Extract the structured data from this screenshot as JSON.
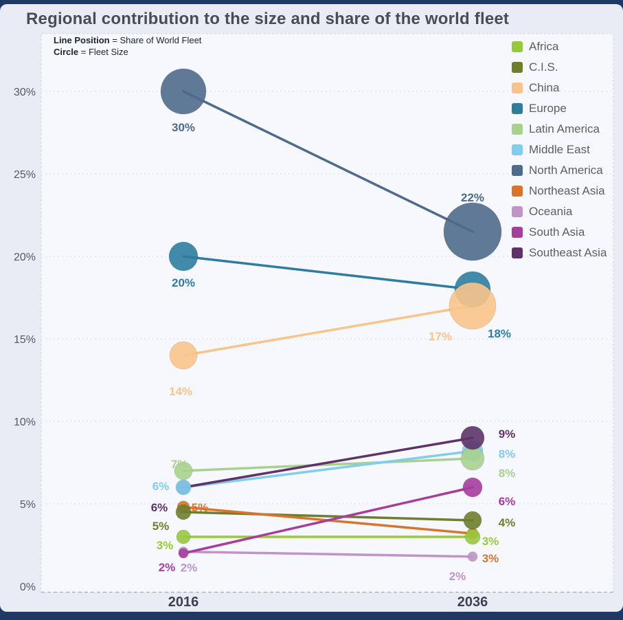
{
  "page": {
    "title": "Regional contribution to the size and share of the world fleet"
  },
  "subtitle": {
    "line1_bold": "Line Position",
    "line1_rest": " = Share of World Fleet",
    "line2_bold": "Circle",
    "line2_rest": " = Fleet Size"
  },
  "chart_data": {
    "type": "line",
    "variant": "slope-chart-with-bubbles",
    "title": "Regional contribution to the size and share of the world fleet",
    "xlabel": "",
    "ylabel": "Share of World Fleet",
    "x": [
      "2016",
      "2036"
    ],
    "y_ticks": [
      0,
      5,
      10,
      15,
      20,
      25,
      30
    ],
    "y_tick_labels": [
      "0%",
      "5%",
      "10%",
      "15%",
      "20%",
      "25%",
      "30%"
    ],
    "ylim": [
      0,
      33
    ],
    "grid": true,
    "legend_position": "top-right",
    "bubble_note": "bubble radius encodes fleet size (pixels, not labeled numerically in source image)",
    "series": [
      {
        "name": "Africa",
        "color": "#97c93d",
        "values": [
          3,
          3
        ],
        "bubble_r": [
          10,
          11
        ],
        "label_offsets": [
          [
            -27,
            12
          ],
          [
            26,
            6
          ]
        ]
      },
      {
        "name": "C.I.S.",
        "color": "#6d7e2d",
        "values": [
          5,
          4
        ],
        "pos": [
          4.5,
          4
        ],
        "bubble_r": [
          11,
          13
        ],
        "label_offsets": [
          [
            -33,
            20
          ],
          [
            50,
            3
          ]
        ]
      },
      {
        "name": "China",
        "color": "#f9c48b",
        "values": [
          14,
          17
        ],
        "bubble_r": [
          20,
          34
        ],
        "label_offsets": [
          [
            -4,
            52
          ],
          [
            -47,
            44
          ]
        ]
      },
      {
        "name": "Europe",
        "color": "#2e7da0",
        "values": [
          20,
          18
        ],
        "bubble_r": [
          21,
          26
        ],
        "label_offsets": [
          [
            0,
            38
          ],
          [
            39,
            64
          ]
        ]
      },
      {
        "name": "Latin America",
        "color": "#a9d18e",
        "values": [
          7,
          8
        ],
        "pos": [
          7,
          7.75
        ],
        "bubble_r": [
          13,
          17
        ],
        "label_offsets": [
          [
            -6,
            -10
          ],
          [
            50,
            21
          ]
        ]
      },
      {
        "name": "Middle East",
        "color": "#81cdee",
        "values": [
          6,
          8
        ],
        "pos": [
          6,
          8.2
        ],
        "bubble_r": [
          11,
          15
        ],
        "label_offsets": [
          [
            -33,
            -2
          ],
          [
            50,
            4
          ]
        ]
      },
      {
        "name": "North America",
        "color": "#4e6a8c",
        "values": [
          30,
          22
        ],
        "pos": [
          30,
          21.5
        ],
        "bubble_r": [
          33,
          42
        ],
        "label_offsets": [
          [
            0,
            52
          ],
          [
            0,
            -50
          ]
        ]
      },
      {
        "name": "Northeast Asia",
        "color": "#d8742c",
        "values": [
          5,
          3
        ],
        "pos": [
          4.8,
          3.2
        ],
        "bubble_r": [
          9,
          8
        ],
        "label_offsets": [
          [
            24,
            0
          ],
          [
            26,
            36
          ]
        ]
      },
      {
        "name": "Oceania",
        "color": "#c094c6",
        "values": [
          2,
          2
        ],
        "pos": [
          2.1,
          1.8
        ],
        "bubble_r": [
          7,
          7
        ],
        "label_offsets": [
          [
            8,
            23
          ],
          [
            -22,
            28
          ]
        ]
      },
      {
        "name": "South Asia",
        "color": "#a63d9f",
        "values": [
          2,
          6
        ],
        "bubble_r": [
          7,
          14
        ],
        "label_offsets": [
          [
            -24,
            20
          ],
          [
            50,
            20
          ]
        ]
      },
      {
        "name": "Southeast Asia",
        "color": "#5d3368",
        "values": [
          6,
          9
        ],
        "bubble_r": [
          10,
          17
        ],
        "label_offsets": [
          [
            -35,
            29
          ],
          [
            50,
            -6
          ]
        ]
      }
    ]
  }
}
